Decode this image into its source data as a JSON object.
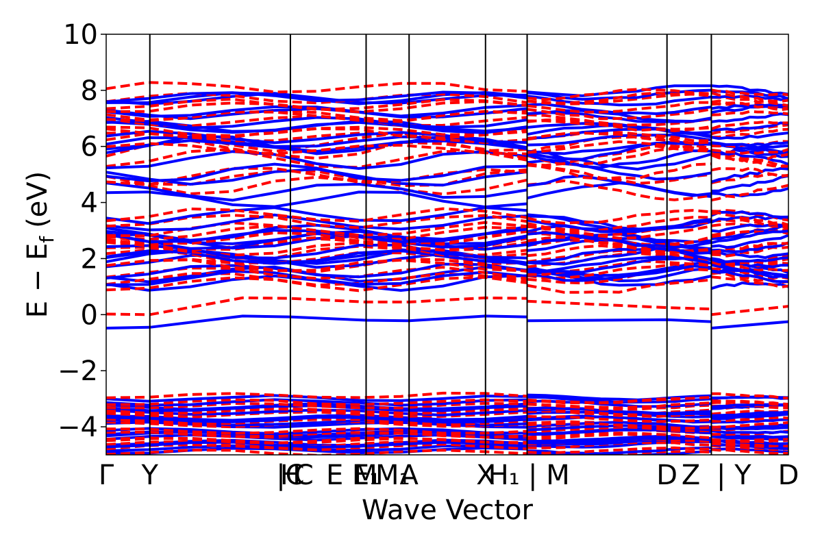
{
  "chart_data": {
    "type": "line",
    "title": "",
    "xlabel": "Wave Vector",
    "ylabel": "E − E",
    "ylabel_subscript": "f",
    "ylabel_unit": "(eV)",
    "ylim": [
      -5,
      10
    ],
    "xlim": [
      0,
      1
    ],
    "grid": false,
    "y_ticks": [
      -4,
      -2,
      0,
      2,
      4,
      6,
      8,
      10
    ],
    "y_tick_labels": [
      "−4",
      "−2",
      "0",
      "2",
      "4",
      "6",
      "8",
      "10"
    ],
    "k_points": [
      {
        "label": "Γ",
        "x": 0.0
      },
      {
        "label": "Y",
        "x": 0.064
      },
      {
        "label": "H",
        "x": 0.27
      },
      {
        "label": "H",
        "x": 0.27
      },
      {
        "label": "|C",
        "x": 0.27
      },
      {
        "label": "C",
        "x": 0.29
      },
      {
        "label": "E",
        "x": 0.335
      },
      {
        "label": "M",
        "x": 0.38
      },
      {
        "label": "E₁",
        "x": 0.381
      },
      {
        "label": "M₁",
        "x": 0.42
      },
      {
        "label": "A",
        "x": 0.444
      },
      {
        "label": "X",
        "x": 0.556
      },
      {
        "label": "H₁",
        "x": 0.583
      },
      {
        "label": "| M",
        "x": 0.649
      },
      {
        "label": "D",
        "x": 0.822
      },
      {
        "label": "Z",
        "x": 0.857
      },
      {
        "label": "| Y",
        "x": 0.92
      },
      {
        "label": "D",
        "x": 1.0
      }
    ],
    "vlines": [
      0.064,
      0.27,
      0.381,
      0.444,
      0.556,
      0.617,
      0.822,
      0.887
    ],
    "segment_breaks": [
      0.617,
      0.887
    ],
    "series": [
      {
        "color": "#0000ff",
        "style": "solid",
        "width": 4
      },
      {
        "color": "#ff0000",
        "style": "dashed",
        "width": 4
      }
    ],
    "valence_band_range": [
      -5.0,
      -2.9
    ],
    "conduction_band_range": [
      0.5,
      8.1
    ],
    "key_bands": [
      {
        "series": 0,
        "points": [
          [
            0.0,
            -0.48
          ],
          [
            0.064,
            -0.45
          ],
          [
            0.2,
            -0.05
          ],
          [
            0.27,
            -0.08
          ],
          [
            0.381,
            -0.2
          ],
          [
            0.444,
            -0.22
          ],
          [
            0.556,
            -0.05
          ],
          [
            0.617,
            -0.08
          ],
          [
            0.617,
            -0.22
          ],
          [
            0.822,
            -0.18
          ],
          [
            0.887,
            -0.25
          ],
          [
            0.887,
            -0.48
          ],
          [
            1.0,
            -0.25
          ]
        ]
      },
      {
        "series": 1,
        "points": [
          [
            0.0,
            0.02
          ],
          [
            0.064,
            0.0
          ],
          [
            0.2,
            0.6
          ],
          [
            0.27,
            0.58
          ],
          [
            0.381,
            0.45
          ],
          [
            0.444,
            0.45
          ],
          [
            0.556,
            0.6
          ],
          [
            0.617,
            0.58
          ],
          [
            0.617,
            0.48
          ],
          [
            0.822,
            0.25
          ],
          [
            0.887,
            0.2
          ],
          [
            0.887,
            0.0
          ],
          [
            1.0,
            0.3
          ]
        ]
      }
    ]
  }
}
